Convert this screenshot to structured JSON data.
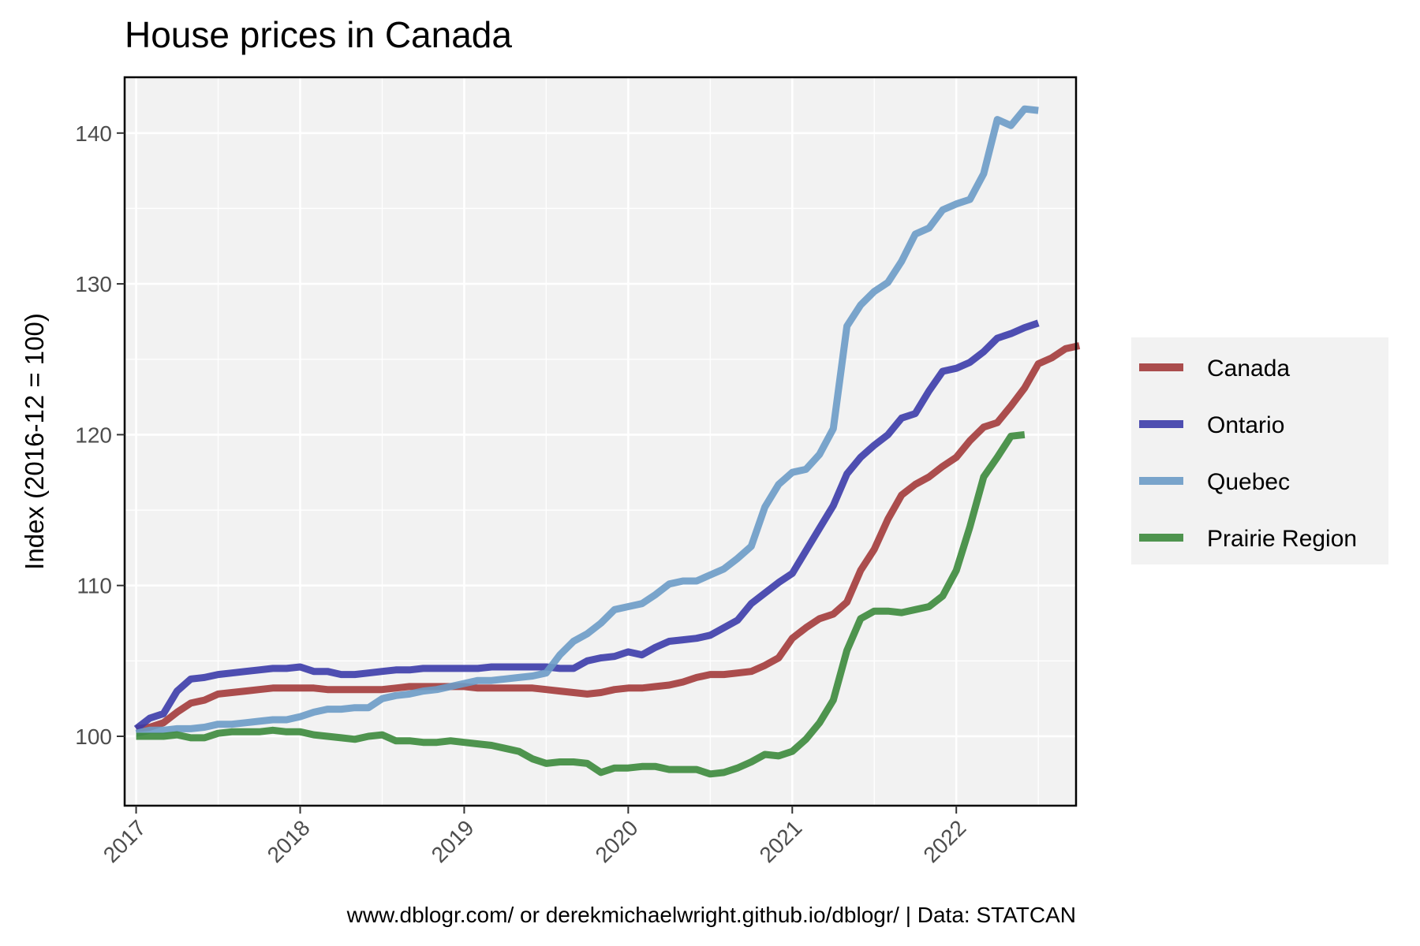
{
  "chart_data": {
    "type": "line",
    "title": "House prices in Canada",
    "xlabel": "",
    "ylabel": "Index (2016-12 = 100)",
    "caption": "www.dblogr.com/ or derekmichaelwright.github.io/dblogr/ | Data: STATCAN",
    "xlim": [
      2016.93,
      2022.73
    ],
    "ylim": [
      95.4,
      143.7
    ],
    "x_ticks": [
      2017,
      2018,
      2019,
      2020,
      2021,
      2022
    ],
    "x_tick_labels": [
      "2017",
      "2018",
      "2019",
      "2020",
      "2021",
      "2022"
    ],
    "y_ticks": [
      100,
      110,
      120,
      130,
      140
    ],
    "y_tick_labels": [
      "100",
      "110",
      "120",
      "130",
      "140"
    ],
    "grid": true,
    "legend_position": "right",
    "x_start": "2017-01",
    "x_step": "1 month",
    "series": [
      {
        "name": "Canada",
        "color": "#a33b3b",
        "values": [
          100.5,
          100.6,
          100.9,
          101.6,
          102.2,
          102.4,
          102.8,
          102.9,
          103.0,
          103.1,
          103.2,
          103.2,
          103.2,
          103.2,
          103.1,
          103.1,
          103.1,
          103.1,
          103.1,
          103.2,
          103.3,
          103.3,
          103.3,
          103.3,
          103.3,
          103.2,
          103.2,
          103.2,
          103.2,
          103.2,
          103.1,
          103.0,
          102.9,
          102.8,
          102.9,
          103.1,
          103.2,
          103.2,
          103.3,
          103.4,
          103.6,
          103.9,
          104.1,
          104.1,
          104.2,
          104.3,
          104.7,
          105.2,
          106.5,
          107.2,
          107.8,
          108.1,
          108.9,
          111.0,
          112.4,
          114.4,
          116.0,
          116.7,
          117.2,
          117.9,
          118.5,
          119.6,
          120.5,
          120.8,
          121.9,
          123.1,
          124.7,
          125.1,
          125.7,
          125.9
        ]
      },
      {
        "name": "Ontario",
        "color": "#3c3caa",
        "values": [
          100.5,
          101.2,
          101.5,
          103.0,
          103.8,
          103.9,
          104.1,
          104.2,
          104.3,
          104.4,
          104.5,
          104.5,
          104.6,
          104.3,
          104.3,
          104.1,
          104.1,
          104.2,
          104.3,
          104.4,
          104.4,
          104.5,
          104.5,
          104.5,
          104.5,
          104.5,
          104.6,
          104.6,
          104.6,
          104.6,
          104.6,
          104.5,
          104.5,
          105.0,
          105.2,
          105.3,
          105.6,
          105.4,
          105.9,
          106.3,
          106.4,
          106.5,
          106.7,
          107.2,
          107.7,
          108.8,
          109.5,
          110.2,
          110.8,
          112.3,
          113.8,
          115.3,
          117.4,
          118.5,
          119.3,
          120.0,
          121.1,
          121.4,
          122.9,
          124.2,
          124.4,
          124.8,
          125.5,
          126.4,
          126.7,
          127.1,
          127.4
        ]
      },
      {
        "name": "Quebec",
        "color": "#6b9bc7",
        "values": [
          100.2,
          100.4,
          100.4,
          100.5,
          100.5,
          100.6,
          100.8,
          100.8,
          100.9,
          101.0,
          101.1,
          101.1,
          101.3,
          101.6,
          101.8,
          101.8,
          101.9,
          101.9,
          102.5,
          102.7,
          102.8,
          103.0,
          103.1,
          103.3,
          103.5,
          103.7,
          103.7,
          103.8,
          103.9,
          104.0,
          104.2,
          105.4,
          106.3,
          106.8,
          107.5,
          108.4,
          108.6,
          108.8,
          109.4,
          110.1,
          110.3,
          110.3,
          110.7,
          111.1,
          111.8,
          112.6,
          115.2,
          116.7,
          117.5,
          117.7,
          118.7,
          120.4,
          127.2,
          128.6,
          129.5,
          130.1,
          131.5,
          133.3,
          133.7,
          134.9,
          135.3,
          135.6,
          137.3,
          140.9,
          140.5,
          141.6,
          141.5
        ]
      },
      {
        "name": "Prairie Region",
        "color": "#3c8a3c",
        "values": [
          100.0,
          100.0,
          100.0,
          100.1,
          99.9,
          99.9,
          100.2,
          100.3,
          100.3,
          100.3,
          100.4,
          100.3,
          100.3,
          100.1,
          100.0,
          99.9,
          99.8,
          100.0,
          100.1,
          99.7,
          99.7,
          99.6,
          99.6,
          99.7,
          99.6,
          99.5,
          99.4,
          99.2,
          99.0,
          98.5,
          98.2,
          98.3,
          98.3,
          98.2,
          97.6,
          97.9,
          97.9,
          98.0,
          98.0,
          97.8,
          97.8,
          97.8,
          97.5,
          97.6,
          97.9,
          98.3,
          98.8,
          98.7,
          99.0,
          99.8,
          100.9,
          102.4,
          105.7,
          107.8,
          108.3,
          108.3,
          108.2,
          108.4,
          108.6,
          109.3,
          111.0,
          113.9,
          117.2,
          118.5,
          119.9,
          120.0
        ]
      }
    ]
  },
  "colors": {
    "panel_background": "#f2f2f2",
    "grid_major": "#ffffff",
    "panel_border": "#000000",
    "legend_background": "#f2f2f2"
  }
}
